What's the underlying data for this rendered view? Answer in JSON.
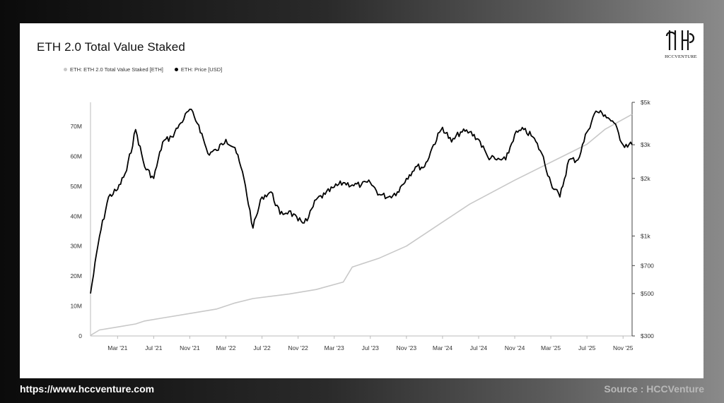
{
  "card": {
    "title": "ETH 2.0 Total Value Staked",
    "logo_text": "HCCVENTURE"
  },
  "footer": {
    "url": "https://www.hccventure.com",
    "source": "Source : HCCVenture"
  },
  "chart_data": {
    "type": "line",
    "title": "ETH 2.0 Total Value Staked",
    "x_range": [
      "2020-12",
      "2025-12"
    ],
    "x_ticks": [
      "Mar '21",
      "Jul '21",
      "Nov '21",
      "Mar '22",
      "Jul '22",
      "Nov '22",
      "Mar '23",
      "Jul '23",
      "Nov '23",
      "Mar '24",
      "Jul '24",
      "Nov '24",
      "Mar '25",
      "Jul '25",
      "Nov '25"
    ],
    "y_left": {
      "ticks": [
        "0",
        "10M",
        "20M",
        "30M",
        "40M",
        "50M",
        "60M",
        "70M"
      ],
      "range": [
        0,
        78000000
      ]
    },
    "y_right": {
      "scale": "log",
      "ticks": [
        "$300",
        "$500",
        "$700",
        "$1k",
        "$2k",
        "$3k",
        "$5k"
      ],
      "tick_values": [
        300,
        500,
        700,
        1000,
        2000,
        3000,
        5000
      ],
      "range": [
        300,
        5000
      ]
    },
    "series": [
      {
        "name": "ETH: ETH 2.0 Total Value Staked [ETH]",
        "axis": "left",
        "color": "#c8c8c8",
        "points": [
          [
            "2020-12",
            0.2
          ],
          [
            "2021-01",
            2
          ],
          [
            "2021-03",
            3
          ],
          [
            "2021-05",
            4
          ],
          [
            "2021-06",
            5
          ],
          [
            "2021-08",
            6
          ],
          [
            "2021-11",
            7.5
          ],
          [
            "2022-02",
            9
          ],
          [
            "2022-04",
            11
          ],
          [
            "2022-06",
            12.5
          ],
          [
            "2022-10",
            14
          ],
          [
            "2023-01",
            15.5
          ],
          [
            "2023-04",
            18
          ],
          [
            "2023-05",
            23
          ],
          [
            "2023-08",
            26
          ],
          [
            "2023-11",
            30
          ],
          [
            "2024-01",
            34
          ],
          [
            "2024-03",
            38
          ],
          [
            "2024-06",
            44
          ],
          [
            "2024-11",
            52
          ],
          [
            "2025-03",
            58
          ],
          [
            "2025-07",
            64
          ],
          [
            "2025-09",
            69
          ],
          [
            "2025-12",
            74
          ]
        ]
      },
      {
        "name": "ETH: Price [USD]",
        "axis": "right",
        "color": "#000000",
        "points": [
          [
            "2020-12",
            500
          ],
          [
            "2021-01",
            1000
          ],
          [
            "2021-02",
            1600
          ],
          [
            "2021-03",
            1750
          ],
          [
            "2021-04",
            2200
          ],
          [
            "2021-05",
            3600
          ],
          [
            "2021-06",
            2300
          ],
          [
            "2021-07",
            2000
          ],
          [
            "2021-08",
            3100
          ],
          [
            "2021-09",
            3300
          ],
          [
            "2021-10",
            3900
          ],
          [
            "2021-11",
            4600
          ],
          [
            "2021-12",
            3800
          ],
          [
            "2022-01",
            2700
          ],
          [
            "2022-02",
            2800
          ],
          [
            "2022-03",
            3200
          ],
          [
            "2022-04",
            2900
          ],
          [
            "2022-05",
            2000
          ],
          [
            "2022-06",
            1100
          ],
          [
            "2022-07",
            1600
          ],
          [
            "2022-08",
            1700
          ],
          [
            "2022-09",
            1300
          ],
          [
            "2022-10",
            1350
          ],
          [
            "2022-11",
            1200
          ],
          [
            "2022-12",
            1200
          ],
          [
            "2023-01",
            1550
          ],
          [
            "2023-02",
            1650
          ],
          [
            "2023-03",
            1800
          ],
          [
            "2023-04",
            1900
          ],
          [
            "2023-05",
            1850
          ],
          [
            "2023-06",
            1850
          ],
          [
            "2023-07",
            1900
          ],
          [
            "2023-08",
            1650
          ],
          [
            "2023-09",
            1600
          ],
          [
            "2023-10",
            1700
          ],
          [
            "2023-11",
            2000
          ],
          [
            "2023-12",
            2300
          ],
          [
            "2024-01",
            2300
          ],
          [
            "2024-02",
            3000
          ],
          [
            "2024-03",
            3700
          ],
          [
            "2024-04",
            3100
          ],
          [
            "2024-05",
            3500
          ],
          [
            "2024-06",
            3500
          ],
          [
            "2024-07",
            3200
          ],
          [
            "2024-08",
            2600
          ],
          [
            "2024-09",
            2500
          ],
          [
            "2024-10",
            2500
          ],
          [
            "2024-11",
            3400
          ],
          [
            "2024-12",
            3600
          ],
          [
            "2025-01",
            3300
          ],
          [
            "2025-02",
            2700
          ],
          [
            "2025-03",
            1900
          ],
          [
            "2025-04",
            1600
          ],
          [
            "2025-05",
            2500
          ],
          [
            "2025-06",
            2500
          ],
          [
            "2025-07",
            3500
          ],
          [
            "2025-08",
            4500
          ],
          [
            "2025-09",
            4300
          ],
          [
            "2025-10",
            3900
          ],
          [
            "2025-11",
            3000
          ],
          [
            "2025-12",
            3000
          ]
        ]
      }
    ],
    "legend_position": "top-left",
    "grid": false
  }
}
